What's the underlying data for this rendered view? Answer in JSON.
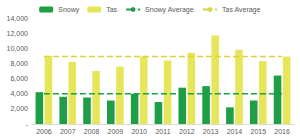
{
  "chart_data": {
    "type": "bar",
    "categories": [
      "2006",
      "2007",
      "2008",
      "2009",
      "2010",
      "2011",
      "2012",
      "2013",
      "2014",
      "2015",
      "2016"
    ],
    "series": [
      {
        "name": "Snowy",
        "type": "bar",
        "color": "#1e9e45",
        "values": [
          4200,
          3600,
          3500,
          3100,
          4000,
          2900,
          4800,
          5000,
          2200,
          3100,
          6400
        ]
      },
      {
        "name": "Tas",
        "type": "bar",
        "color": "#e6e65a",
        "values": [
          9000,
          8200,
          7000,
          7600,
          8900,
          8400,
          9400,
          11700,
          9800,
          8300,
          8900
        ]
      },
      {
        "name": "Snowy Average",
        "type": "line",
        "line_style": "dashed",
        "color": "#1e9e45",
        "values": [
          4000,
          4000,
          4000,
          4000,
          4000,
          4000,
          4000,
          4000,
          4000,
          4000,
          4000
        ]
      },
      {
        "name": "Tas Average",
        "type": "line",
        "line_style": "dashed",
        "color": "#d9d43c",
        "values": [
          8900,
          8900,
          8900,
          8900,
          8900,
          8900,
          8900,
          8900,
          8900,
          8900,
          8900
        ]
      }
    ],
    "ylim": [
      0,
      14000
    ],
    "yticks": [
      {
        "value": 0,
        "label": "-"
      },
      {
        "value": 2000,
        "label": "2,000"
      },
      {
        "value": 4000,
        "label": "4,000"
      },
      {
        "value": 6000,
        "label": "6,000"
      },
      {
        "value": 8000,
        "label": "8,000"
      },
      {
        "value": 10000,
        "label": "10,000"
      },
      {
        "value": 12000,
        "label": "12,000"
      },
      {
        "value": 14000,
        "label": "14,000"
      }
    ],
    "grid": false,
    "legend": "top"
  }
}
